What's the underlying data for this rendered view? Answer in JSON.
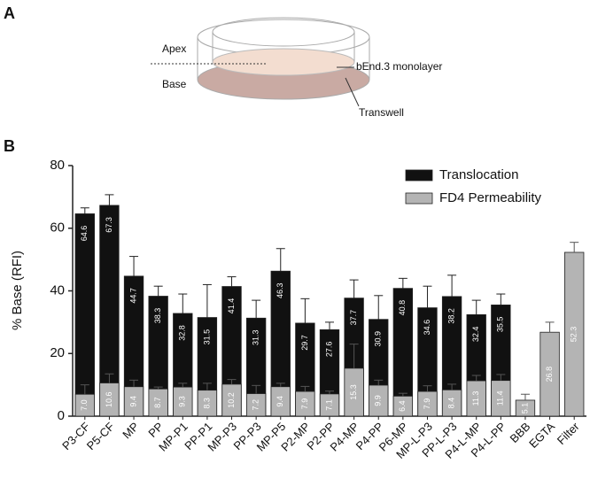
{
  "panel_a": {
    "label": "A",
    "apex": "Apex",
    "base": "Base",
    "monolayer": "bEnd.3 monolayer",
    "transwell": "Transwell"
  },
  "panel_b_label": "B",
  "chart_data": {
    "type": "bar",
    "ylabel": "% Base (RFI)",
    "categories": [
      "P3-CF",
      "P5-CF",
      "MP",
      "PP",
      "MP-P1",
      "PP-P1",
      "MP-P3",
      "PP-P3",
      "MP-P5",
      "P2-MP",
      "P2-PP",
      "P4-MP",
      "P4-PP",
      "P6-MP",
      "MP-L-P3",
      "PP-L-P3",
      "P4-L-MP",
      "P4-L-PP",
      "BBB",
      "EGTA",
      "Filter"
    ],
    "series": [
      {
        "name": "Translocation",
        "color": "#111111",
        "values": [
          64.6,
          67.3,
          44.7,
          38.3,
          32.8,
          31.5,
          41.4,
          31.3,
          46.3,
          29.7,
          27.6,
          37.7,
          30.9,
          40.8,
          34.6,
          38.2,
          32.4,
          35.5,
          null,
          null,
          null
        ],
        "errors": [
          1.9,
          3.4,
          6.3,
          3.2,
          6.2,
          10.5,
          3.1,
          5.7,
          7.2,
          7.8,
          2.4,
          5.8,
          7.6,
          3.2,
          6.9,
          6.8,
          4.6,
          3.5,
          null,
          null,
          null
        ]
      },
      {
        "name": "FD4 Permeability",
        "color": "#b4b4b4",
        "values": [
          7,
          10.6,
          9.4,
          8.7,
          9.3,
          8.3,
          10.2,
          7.2,
          9.4,
          7.9,
          7.1,
          15.3,
          9.9,
          6.4,
          7.9,
          8.4,
          11.3,
          11.4,
          5.1,
          26.8,
          52.3
        ],
        "value_labels": [
          "7.0",
          "10.6",
          "9.4",
          "8.7",
          "9.3",
          "8.3",
          "10.2",
          "7.2",
          "9.4",
          "7.9",
          "7.1",
          "15.3",
          "9.9",
          "6.4",
          "7.9",
          "8.4",
          "11.3",
          "11.4",
          "5.1",
          "26.8",
          "52.3"
        ],
        "errors": [
          3,
          2.9,
          2.1,
          0.6,
          1.2,
          2.2,
          1.5,
          2.6,
          1.1,
          1.6,
          0.9,
          7.7,
          1.6,
          0.9,
          1.8,
          1.8,
          1.7,
          1.9,
          1.9,
          3.2,
          3.2
        ]
      }
    ],
    "ylim": [
      0,
      80
    ],
    "yticks": [
      0,
      20,
      40,
      60,
      80
    ],
    "grid": false,
    "legend": "top-right"
  }
}
